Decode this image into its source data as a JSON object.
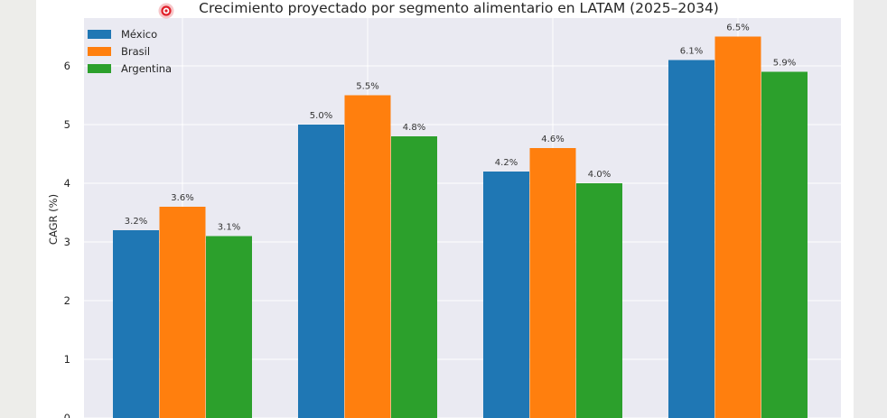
{
  "chart_data": {
    "type": "bar",
    "title": "Crecimiento proyectado por segmento alimentario en LATAM (2025–2034)",
    "ylabel": "CAGR (%)",
    "xlabel": "",
    "ylim": [
      0,
      6.9
    ],
    "yticks": [
      0,
      1,
      2,
      3,
      4,
      5,
      6
    ],
    "grid": true,
    "legend": "top-left",
    "categories": [
      "",
      "",
      "",
      ""
    ],
    "series": [
      {
        "name": "México",
        "color": "#1f77b4",
        "values": [
          3.2,
          5.0,
          4.2,
          6.1
        ],
        "labels": [
          "3.2%",
          "5.0%",
          "4.2%",
          "6.1%"
        ]
      },
      {
        "name": "Brasil",
        "color": "#ff7f0e",
        "values": [
          3.6,
          5.5,
          4.6,
          6.5
        ],
        "labels": [
          "3.6%",
          "5.5%",
          "4.6%",
          "6.5%"
        ]
      },
      {
        "name": "Argentina",
        "color": "#2ca02c",
        "values": [
          3.1,
          4.8,
          4.0,
          5.9
        ],
        "labels": [
          "3.1%",
          "4.8%",
          "4.0%",
          "5.9%"
        ]
      }
    ]
  },
  "colors": {
    "plot_background": "#eaeaf2",
    "grid": "#ffffff",
    "cursor_ring": "#e0202a"
  }
}
